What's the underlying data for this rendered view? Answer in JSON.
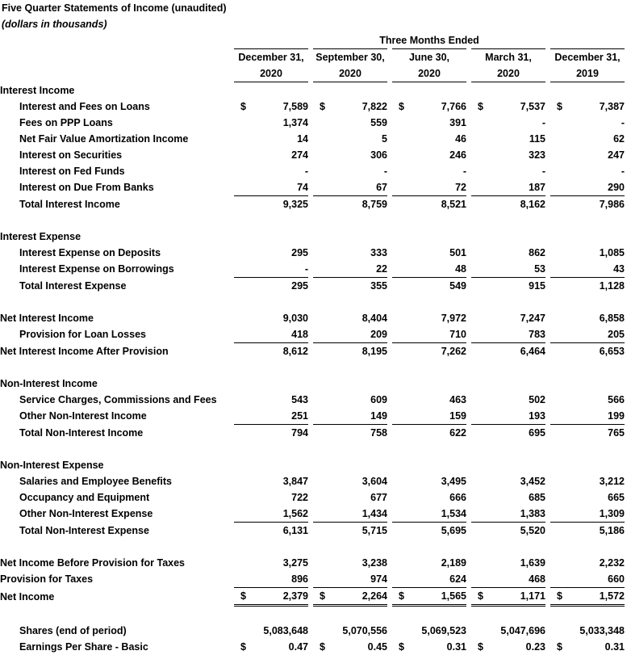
{
  "title": "Five Quarter Statements of Income (unaudited)",
  "subtitle": "(dollars in thousands)",
  "period_header": "Three Months Ended",
  "currency_symbol": "$",
  "columns": [
    {
      "month": "December 31,",
      "year": "2020"
    },
    {
      "month": "September 30,",
      "year": "2020"
    },
    {
      "month": "June 30,",
      "year": "2020"
    },
    {
      "month": "March 31,",
      "year": "2020"
    },
    {
      "month": "December 31,",
      "year": "2019"
    }
  ],
  "sections": {
    "interest_income": {
      "heading": "Interest Income",
      "rows": [
        {
          "label": "Interest and Fees on Loans",
          "values": [
            "7,589",
            "7,822",
            "7,766",
            "7,537",
            "7,387"
          ]
        },
        {
          "label": "Fees on PPP Loans",
          "values": [
            "1,374",
            "559",
            "391",
            "-",
            "-"
          ]
        },
        {
          "label": "Net Fair Value Amortization Income",
          "values": [
            "14",
            "5",
            "46",
            "115",
            "62"
          ]
        },
        {
          "label": "Interest on Securities",
          "values": [
            "274",
            "306",
            "246",
            "323",
            "247"
          ]
        },
        {
          "label": "Interest on Fed Funds",
          "values": [
            "-",
            "-",
            "-",
            "-",
            "-"
          ]
        },
        {
          "label": "Interest on Due From Banks",
          "values": [
            "74",
            "67",
            "72",
            "187",
            "290"
          ]
        }
      ],
      "total": {
        "label": "Total Interest Income",
        "values": [
          "9,325",
          "8,759",
          "8,521",
          "8,162",
          "7,986"
        ]
      }
    },
    "interest_expense": {
      "heading": "Interest Expense",
      "rows": [
        {
          "label": "Interest Expense on Deposits",
          "values": [
            "295",
            "333",
            "501",
            "862",
            "1,085"
          ]
        },
        {
          "label": "Interest Expense on Borrowings",
          "values": [
            "-",
            "22",
            "48",
            "53",
            "43"
          ]
        }
      ],
      "total": {
        "label": "Total Interest Expense",
        "values": [
          "295",
          "355",
          "549",
          "915",
          "1,128"
        ]
      }
    },
    "net_interest": {
      "net_interest_income": {
        "label": "Net Interest Income",
        "values": [
          "9,030",
          "8,404",
          "7,972",
          "7,247",
          "6,858"
        ]
      },
      "provision": {
        "label": "Provision for Loan Losses",
        "values": [
          "418",
          "209",
          "710",
          "783",
          "205"
        ]
      },
      "after_provision": {
        "label": "Net Interest Income After Provision",
        "values": [
          "8,612",
          "8,195",
          "7,262",
          "6,464",
          "6,653"
        ]
      }
    },
    "non_interest_income": {
      "heading": "Non-Interest Income",
      "rows": [
        {
          "label": "Service Charges, Commissions and Fees",
          "values": [
            "543",
            "609",
            "463",
            "502",
            "566"
          ]
        },
        {
          "label": "Other Non-Interest Income",
          "values": [
            "251",
            "149",
            "159",
            "193",
            "199"
          ]
        }
      ],
      "total": {
        "label": "Total Non-Interest Income",
        "values": [
          "794",
          "758",
          "622",
          "695",
          "765"
        ]
      }
    },
    "non_interest_expense": {
      "heading": "Non-Interest Expense",
      "rows": [
        {
          "label": "Salaries and Employee Benefits",
          "values": [
            "3,847",
            "3,604",
            "3,495",
            "3,452",
            "3,212"
          ]
        },
        {
          "label": "Occupancy and Equipment",
          "values": [
            "722",
            "677",
            "666",
            "685",
            "665"
          ]
        },
        {
          "label": "Other Non-Interest Expense",
          "values": [
            "1,562",
            "1,434",
            "1,534",
            "1,383",
            "1,309"
          ]
        }
      ],
      "total": {
        "label": "Total Non-Interest Expense",
        "values": [
          "6,131",
          "5,715",
          "5,695",
          "5,520",
          "5,186"
        ]
      }
    },
    "bottom": {
      "before_taxes": {
        "label": "Net Income Before Provision for Taxes",
        "values": [
          "3,275",
          "3,238",
          "2,189",
          "1,639",
          "2,232"
        ]
      },
      "taxes": {
        "label": "Provision for Taxes",
        "values": [
          "896",
          "974",
          "624",
          "468",
          "660"
        ]
      },
      "net_income": {
        "label": "Net Income",
        "values": [
          "2,379",
          "2,264",
          "1,565",
          "1,171",
          "1,572"
        ]
      }
    },
    "per_share": {
      "shares": {
        "label": "Shares (end of period)",
        "values": [
          "5,083,648",
          "5,070,556",
          "5,069,523",
          "5,047,696",
          "5,033,348"
        ]
      },
      "eps": {
        "label": "Earnings Per Share - Basic",
        "values": [
          "0.47",
          "0.45",
          "0.31",
          "0.23",
          "0.31"
        ]
      }
    }
  }
}
